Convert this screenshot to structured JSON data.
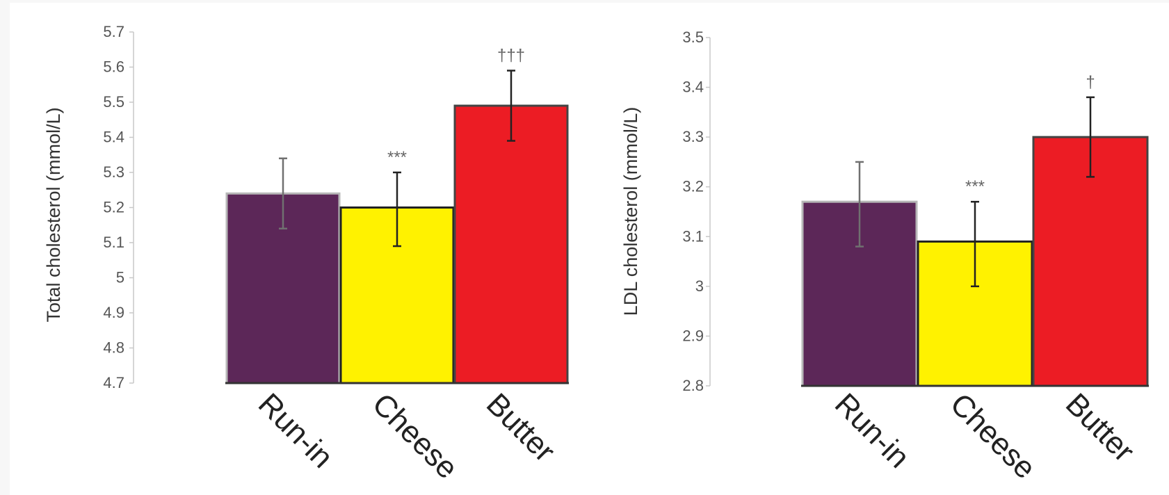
{
  "chart_data": [
    {
      "type": "bar",
      "categories": [
        "Run-in",
        "Cheese",
        "Butter"
      ],
      "values": [
        5.24,
        5.2,
        5.49
      ],
      "errors": [
        [
          5.14,
          5.34
        ],
        [
          5.09,
          5.3
        ],
        [
          5.39,
          5.59
        ]
      ],
      "annotations": [
        "",
        "***",
        "†††"
      ],
      "colors": [
        "#5c2758",
        "#fff200",
        "#ec1c24"
      ],
      "xlabel": "",
      "ylabel": "Total cholesterol (mmol/L)",
      "ylim": [
        4.7,
        5.7
      ],
      "yticks": [
        "5.7",
        "5.6",
        "5.5",
        "5.4",
        "5.3",
        "5.2",
        "5.1",
        "5",
        "4.9",
        "4.8",
        "4.7"
      ],
      "grid": false,
      "legend": "none"
    },
    {
      "type": "bar",
      "categories": [
        "Run-in",
        "Cheese",
        "Butter"
      ],
      "values": [
        3.17,
        3.09,
        3.3
      ],
      "errors": [
        [
          3.08,
          3.25
        ],
        [
          3.0,
          3.17
        ],
        [
          3.22,
          3.38
        ]
      ],
      "annotations": [
        "",
        "***",
        "†"
      ],
      "colors": [
        "#5c2758",
        "#fff200",
        "#ec1c24"
      ],
      "xlabel": "",
      "ylabel": "LDL cholesterol (mmol/L)",
      "ylim": [
        2.8,
        3.5
      ],
      "yticks": [
        "3.5",
        "3.4",
        "3.3",
        "3.2",
        "3.1",
        "3",
        "2.9",
        "2.8"
      ],
      "grid": false,
      "legend": "none"
    }
  ]
}
